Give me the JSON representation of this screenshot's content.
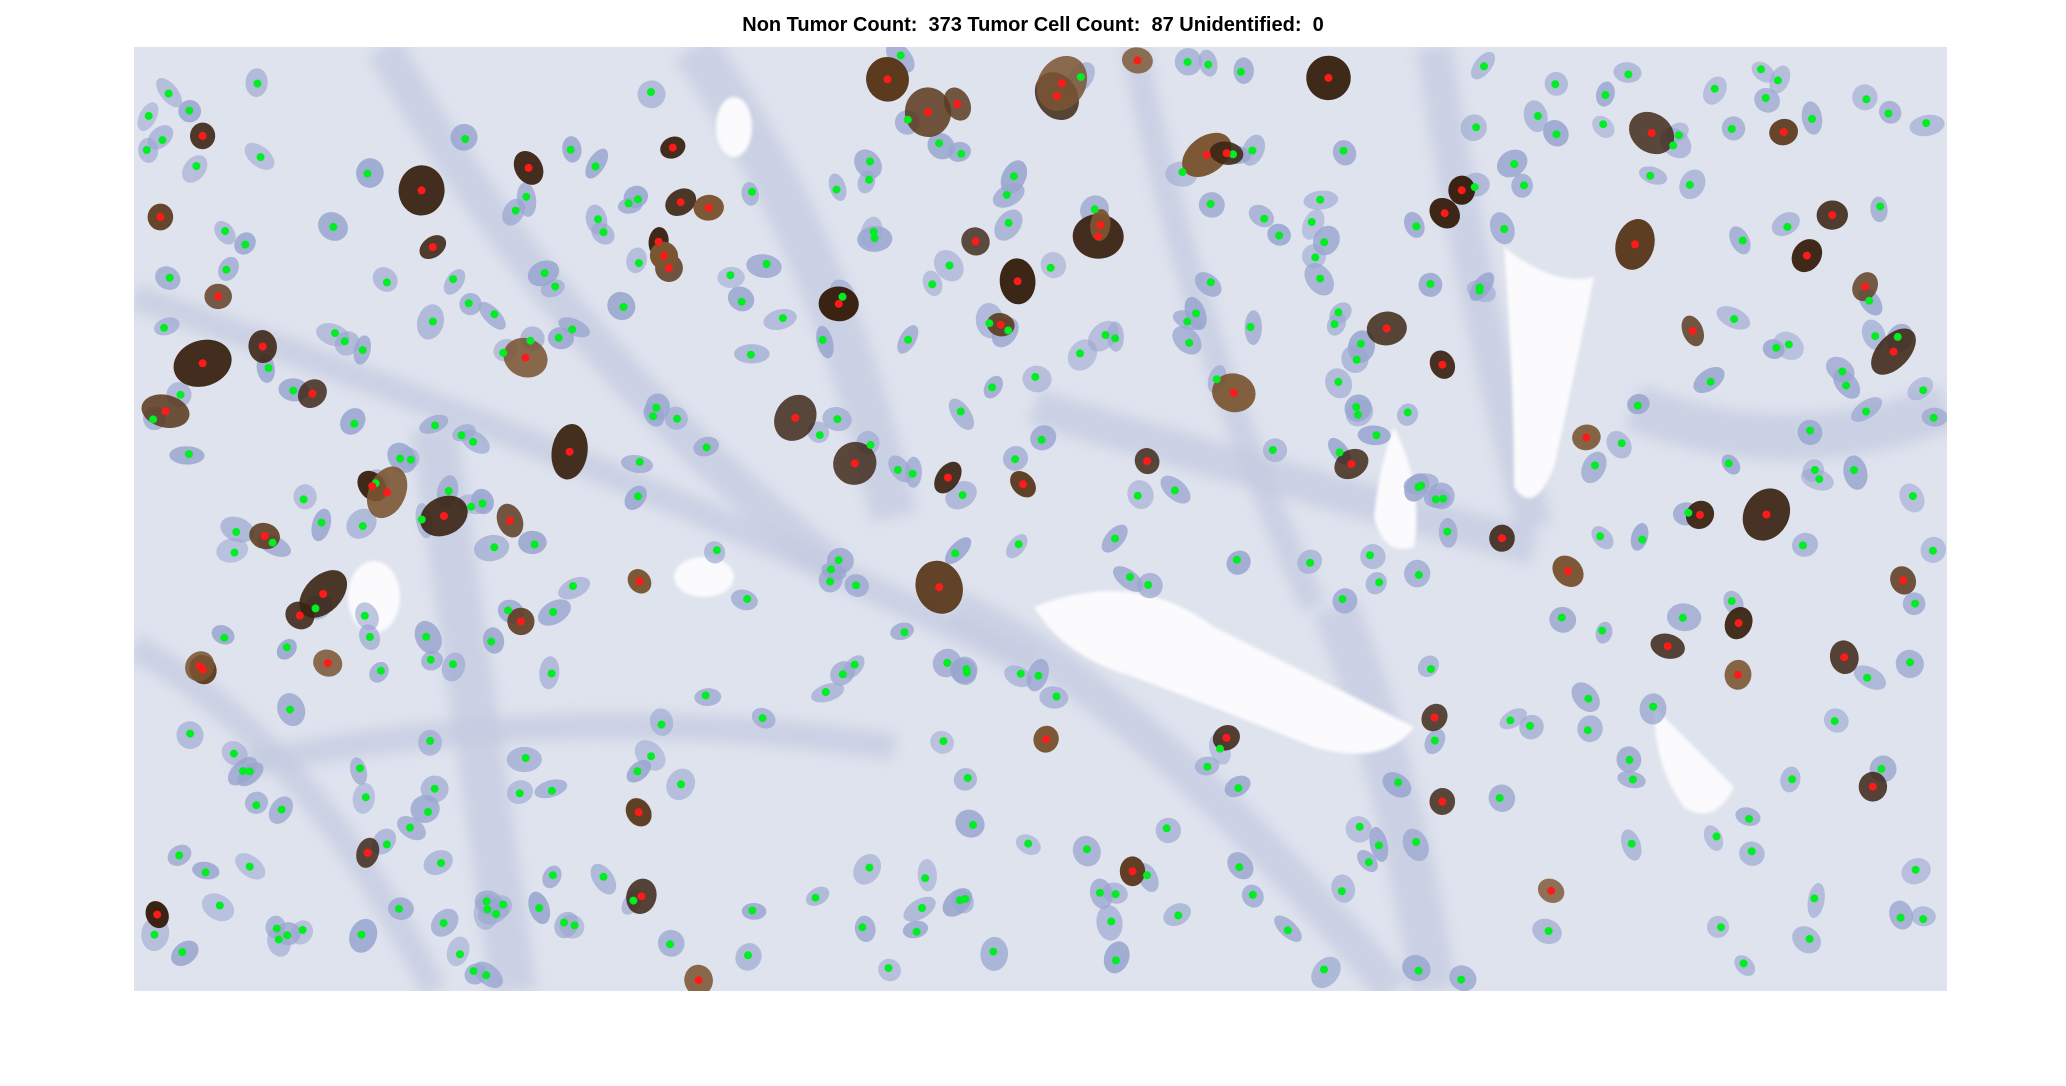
{
  "figure": {
    "title": "Non Tumor Count:  373 Tumor Cell Count:  87 Unidentified:  0"
  },
  "counts": {
    "non_tumor": 373,
    "tumor": 87,
    "unidentified": 0
  },
  "colors": {
    "background": "#ffffff",
    "tissue_base": "#dfe3ee",
    "stroma": "#c4cbe0",
    "lumen": "#fbfbfd",
    "nucleus_blue": "#9aa6cf",
    "nucleus_brown": "#3a2312",
    "non_tumor_marker": "#00ee22",
    "tumor_marker": "#ff1a1a",
    "title_text": "#000000"
  }
}
